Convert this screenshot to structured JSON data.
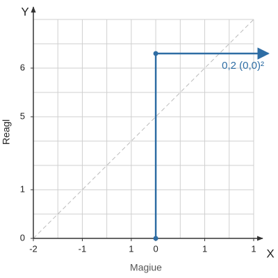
{
  "chart_data": {
    "type": "line",
    "x_axis_letter": "X",
    "y_axis_letter": "Y",
    "x_label": "Magiue",
    "y_label": "Reagl",
    "annotation": "0,2 (0,0)²",
    "xlim": [
      0,
      9
    ],
    "ylim": [
      0,
      9
    ],
    "xticks": [
      {
        "value": 0,
        "label": "-2"
      },
      {
        "value": 2,
        "label": "-1"
      },
      {
        "value": 4,
        "label": "1"
      },
      {
        "value": 5,
        "label": "0"
      },
      {
        "value": 7,
        "label": "1"
      },
      {
        "value": 9,
        "label": "1"
      }
    ],
    "yticks": [
      {
        "value": 0,
        "label": "0"
      },
      {
        "value": 2,
        "label": "1"
      },
      {
        "value": 5,
        "label": "5"
      },
      {
        "value": 7,
        "label": "6"
      }
    ],
    "series": [
      {
        "color": "#2e6da4",
        "x": [
          5,
          5,
          9.6
        ],
        "values": [
          0,
          7.6,
          7.6
        ]
      }
    ]
  }
}
